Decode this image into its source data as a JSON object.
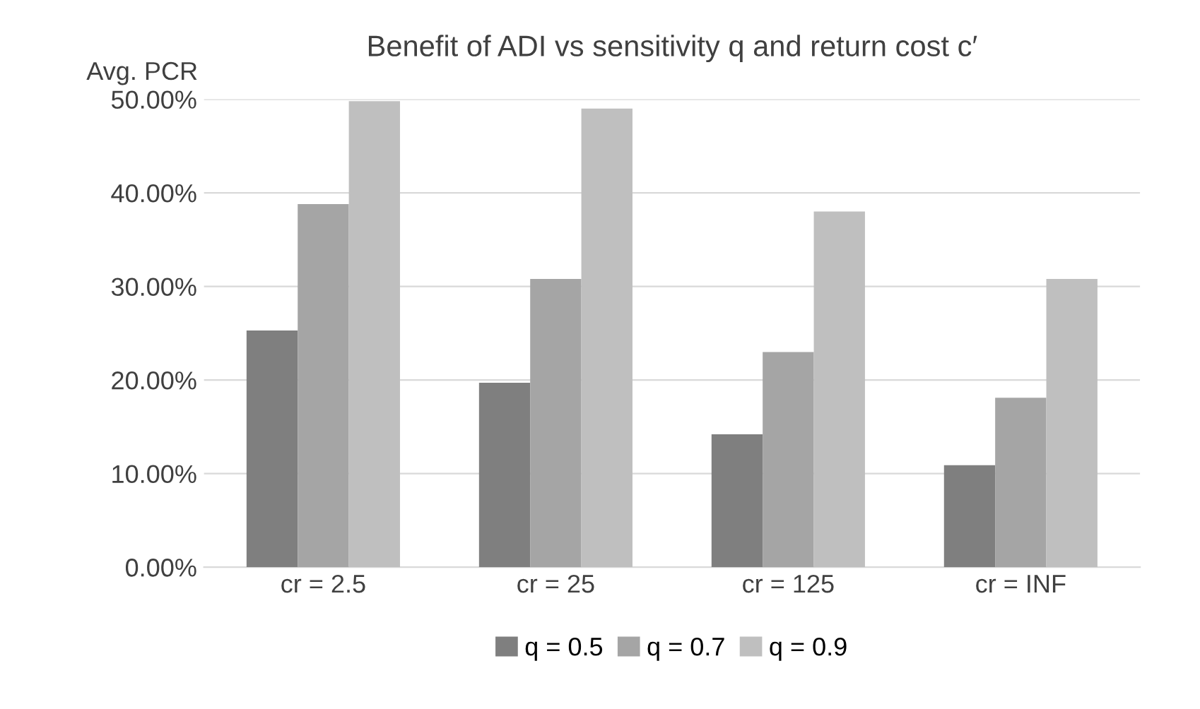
{
  "chart_data": {
    "type": "bar",
    "title": "Benefit of ADI vs sensitivity q and return cost c′",
    "ylabel": "Avg. PCR",
    "categories": [
      "cr = 2.5",
      "cr = 25",
      "cr = 125",
      "cr = INF"
    ],
    "series": [
      {
        "name": "q = 0.5",
        "color": "#7f7f7f",
        "values": [
          25.3,
          19.7,
          14.2,
          10.9
        ]
      },
      {
        "name": "q = 0.7",
        "color": "#a5a5a5",
        "values": [
          38.8,
          30.8,
          23.0,
          18.1
        ]
      },
      {
        "name": "q = 0.9",
        "color": "#bfbfbf",
        "values": [
          49.8,
          49.0,
          38.0,
          30.8
        ]
      }
    ],
    "ylim": [
      0,
      50
    ],
    "yticks": [
      {
        "value": 0,
        "label": "0.00%"
      },
      {
        "value": 10,
        "label": "10.00%"
      },
      {
        "value": 20,
        "label": "20.00%"
      },
      {
        "value": 30,
        "label": "30.00%"
      },
      {
        "value": 40,
        "label": "40.00%"
      },
      {
        "value": 50,
        "label": "50.00%"
      }
    ],
    "grid": "y",
    "legend": "bottom"
  }
}
